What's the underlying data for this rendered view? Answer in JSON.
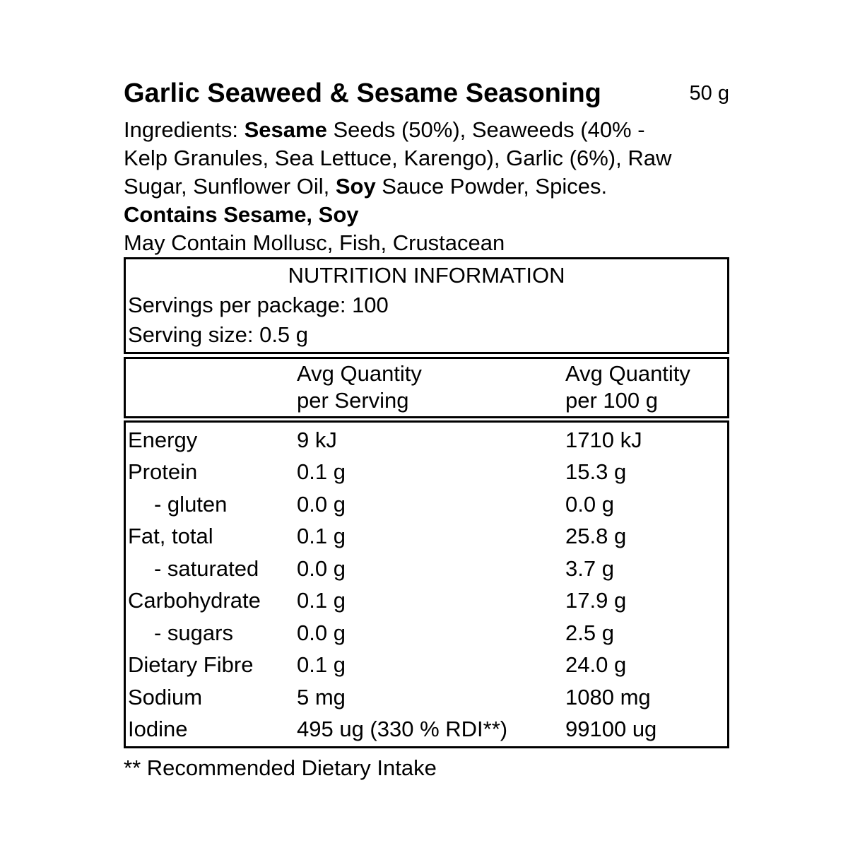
{
  "product": {
    "title": "Garlic Seaweed & Sesame Seasoning",
    "net_weight": "50 g"
  },
  "ingredients": {
    "lines": [
      [
        {
          "text": "Ingredients: ",
          "bold": false
        },
        {
          "text": "Sesame",
          "bold": true
        },
        {
          "text": " Seeds (50%), Seaweeds (40% -",
          "bold": false
        }
      ],
      [
        {
          "text": "Kelp Granules, Sea Lettuce, Karengo), Garlic (6%), Raw",
          "bold": false
        }
      ],
      [
        {
          "text": "Sugar, Sunflower Oil, ",
          "bold": false
        },
        {
          "text": "Soy",
          "bold": true
        },
        {
          "text": " Sauce Powder, Spices.",
          "bold": false
        }
      ]
    ]
  },
  "allergens": {
    "contains": "Contains Sesame, Soy",
    "may_contain": "May Contain Mollusc, Fish, Crustacean"
  },
  "nutrition": {
    "title": "NUTRITION INFORMATION",
    "servings_per_package": "Servings per package: 100",
    "serving_size": "Serving size: 0.5 g",
    "col_headers": {
      "per_serving": [
        "Avg Quantity",
        "per Serving"
      ],
      "per_100g": [
        "Avg Quantity",
        "per 100 g"
      ]
    },
    "rows": [
      {
        "label": "Energy",
        "per_serving": "9 kJ",
        "per_100g": "1710 kJ",
        "indent": false
      },
      {
        "label": "Protein",
        "per_serving": "0.1 g",
        "per_100g": "15.3 g",
        "indent": false
      },
      {
        "label": "- gluten",
        "per_serving": "0.0 g",
        "per_100g": "0.0 g",
        "indent": true
      },
      {
        "label": "Fat, total",
        "per_serving": "0.1 g",
        "per_100g": "25.8 g",
        "indent": false
      },
      {
        "label": "- saturated",
        "per_serving": "0.0 g",
        "per_100g": "3.7 g",
        "indent": true
      },
      {
        "label": "Carbohydrate",
        "per_serving": "0.1 g",
        "per_100g": "17.9 g",
        "indent": false
      },
      {
        "label": "- sugars",
        "per_serving": "0.0 g",
        "per_100g": "2.5 g",
        "indent": true
      },
      {
        "label": "Dietary Fibre",
        "per_serving": "0.1 g",
        "per_100g": "24.0 g",
        "indent": false
      },
      {
        "label": "Sodium",
        "per_serving": "5 mg",
        "per_100g": "1080 mg",
        "indent": false
      },
      {
        "label": "Iodine",
        "per_serving": "495 ug (330 % RDI**)",
        "per_100g": "99100 ug",
        "indent": false
      }
    ]
  },
  "footnote": "** Recommended Dietary Intake"
}
